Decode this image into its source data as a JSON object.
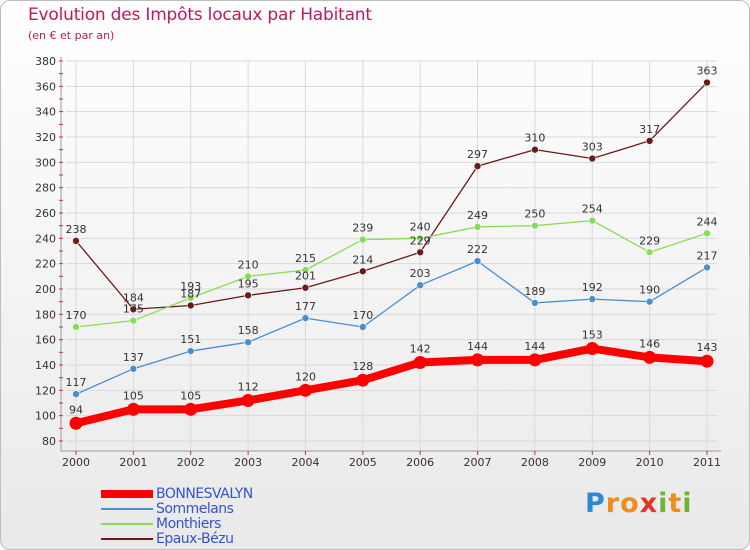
{
  "title": "Evolution des Impôts locaux par Habitant",
  "subtitle": "(en € et par an)",
  "logo": {
    "text": "Proxiti",
    "letters": [
      {
        "ch": "P",
        "color": "#2b89d6"
      },
      {
        "ch": "r",
        "color": "#f28a1e"
      },
      {
        "ch": "o",
        "color": "#f28a1e"
      },
      {
        "ch": "x",
        "color": "#e63322"
      },
      {
        "ch": "i",
        "color": "#6cb52d"
      },
      {
        "ch": "t",
        "color": "#f28a1e"
      },
      {
        "ch": "i",
        "color": "#6cb52d"
      }
    ]
  },
  "chart_data": {
    "type": "line",
    "title": "Evolution des Impôts locaux par Habitant",
    "subtitle": "(en € et par an)",
    "x": [
      "2000",
      "2001",
      "2002",
      "2003",
      "2004",
      "2005",
      "2006",
      "2007",
      "2008",
      "2009",
      "2010",
      "2011"
    ],
    "ylim": [
      80,
      380
    ],
    "yticks": [
      80,
      100,
      120,
      140,
      160,
      180,
      200,
      220,
      240,
      260,
      280,
      300,
      320,
      340,
      360,
      380
    ],
    "grid": true,
    "legend_placement": "bottom-left",
    "series": [
      {
        "name": "BONNESVALYN",
        "color": "#ff0000",
        "values": [
          94,
          105,
          105,
          112,
          120,
          128,
          142,
          144,
          144,
          153,
          146,
          143
        ]
      },
      {
        "name": "Sommelans",
        "color": "#4a8ed0",
        "values": [
          117,
          137,
          151,
          158,
          177,
          170,
          203,
          222,
          189,
          192,
          190,
          217
        ]
      },
      {
        "name": "Monthiers",
        "color": "#88dd55",
        "values": [
          170,
          175,
          193,
          210,
          215,
          239,
          240,
          249,
          250,
          254,
          229,
          244
        ]
      },
      {
        "name": "Epaux-Bézu",
        "color": "#6b1a1a",
        "values": [
          238,
          184,
          187,
          195,
          201,
          214,
          229,
          297,
          310,
          303,
          317,
          363
        ]
      }
    ]
  }
}
